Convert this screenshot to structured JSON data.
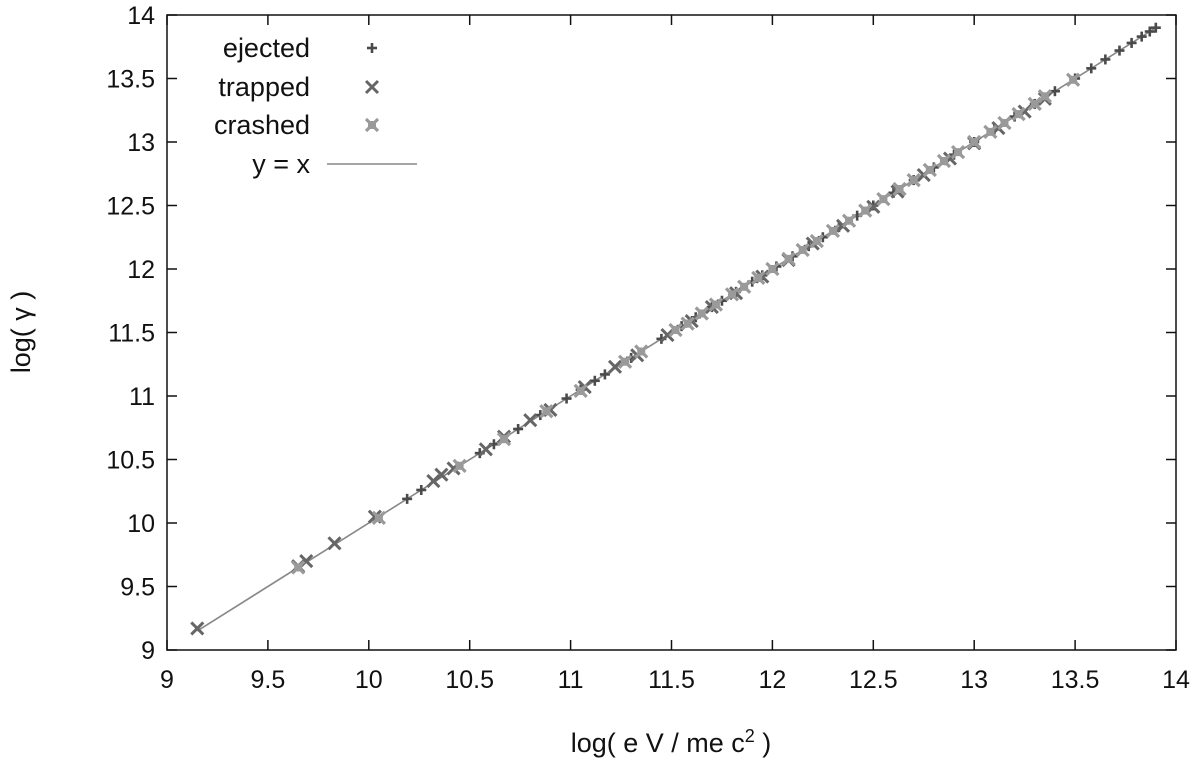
{
  "chart_data": {
    "type": "scatter",
    "title": "",
    "xlabel": "log( e V / me c",
    "xlabel_sup": "2",
    "xlabel_end": " )",
    "ylabel": "log( γ )",
    "xlim": [
      9,
      14
    ],
    "ylim": [
      9,
      14
    ],
    "x_ticks": [
      "9",
      "9.5",
      "10",
      "10.5",
      "11",
      "11.5",
      "12",
      "12.5",
      "13",
      "13.5",
      "14"
    ],
    "y_ticks": [
      "9",
      "9.5",
      "10",
      "10.5",
      "11",
      "11.5",
      "12",
      "12.5",
      "13",
      "13.5",
      "14"
    ],
    "grid": false,
    "legend_position": "top-left",
    "series": [
      {
        "name": "ejected",
        "marker": "plus",
        "color": "#4a4a4a",
        "points": [
          [
            10.19,
            10.19
          ],
          [
            10.26,
            10.26
          ],
          [
            10.55,
            10.55
          ],
          [
            10.62,
            10.62
          ],
          [
            10.74,
            10.74
          ],
          [
            10.85,
            10.85
          ],
          [
            10.98,
            10.98
          ],
          [
            11.05,
            11.05
          ],
          [
            11.12,
            11.12
          ],
          [
            11.17,
            11.17
          ],
          [
            11.3,
            11.3
          ],
          [
            11.45,
            11.45
          ],
          [
            11.55,
            11.55
          ],
          [
            11.62,
            11.62
          ],
          [
            11.7,
            11.7
          ],
          [
            11.75,
            11.75
          ],
          [
            11.82,
            11.82
          ],
          [
            11.9,
            11.9
          ],
          [
            11.95,
            11.95
          ],
          [
            12.02,
            12.02
          ],
          [
            12.1,
            12.1
          ],
          [
            12.18,
            12.18
          ],
          [
            12.25,
            12.25
          ],
          [
            12.33,
            12.33
          ],
          [
            12.42,
            12.42
          ],
          [
            12.5,
            12.5
          ],
          [
            12.6,
            12.6
          ],
          [
            12.7,
            12.7
          ],
          [
            12.8,
            12.8
          ],
          [
            12.9,
            12.9
          ],
          [
            13.0,
            13.0
          ],
          [
            13.1,
            13.1
          ],
          [
            13.2,
            13.2
          ],
          [
            13.3,
            13.3
          ],
          [
            13.4,
            13.4
          ],
          [
            13.5,
            13.5
          ],
          [
            13.58,
            13.58
          ],
          [
            13.65,
            13.65
          ],
          [
            13.72,
            13.72
          ],
          [
            13.78,
            13.78
          ],
          [
            13.83,
            13.83
          ],
          [
            13.87,
            13.87
          ],
          [
            13.9,
            13.9
          ]
        ]
      },
      {
        "name": "trapped",
        "marker": "cross",
        "color": "#666666",
        "points": [
          [
            9.15,
            9.17
          ],
          [
            9.65,
            9.66
          ],
          [
            9.69,
            9.7
          ],
          [
            9.83,
            9.84
          ],
          [
            10.03,
            10.05
          ],
          [
            10.32,
            10.33
          ],
          [
            10.36,
            10.38
          ],
          [
            10.42,
            10.43
          ],
          [
            10.58,
            10.58
          ],
          [
            10.67,
            10.68
          ],
          [
            10.8,
            10.81
          ],
          [
            10.9,
            10.89
          ],
          [
            11.07,
            11.07
          ],
          [
            11.22,
            11.23
          ],
          [
            11.33,
            11.32
          ],
          [
            11.48,
            11.48
          ],
          [
            11.6,
            11.59
          ],
          [
            11.7,
            11.7
          ],
          [
            11.82,
            11.81
          ],
          [
            11.95,
            11.94
          ],
          [
            12.08,
            12.07
          ],
          [
            12.2,
            12.2
          ],
          [
            12.35,
            12.34
          ],
          [
            12.5,
            12.49
          ],
          [
            12.62,
            12.61
          ],
          [
            12.75,
            12.74
          ],
          [
            12.88,
            12.87
          ],
          [
            13.0,
            12.99
          ],
          [
            13.12,
            13.11
          ],
          [
            13.25,
            13.24
          ],
          [
            13.35,
            13.34
          ]
        ]
      },
      {
        "name": "crashed",
        "marker": "filled-x",
        "color": "#9a9a9a",
        "points": [
          [
            9.65,
            9.65
          ],
          [
            10.05,
            10.04
          ],
          [
            10.45,
            10.45
          ],
          [
            10.67,
            10.66
          ],
          [
            10.88,
            10.88
          ],
          [
            11.05,
            11.04
          ],
          [
            11.27,
            11.27
          ],
          [
            11.35,
            11.35
          ],
          [
            11.52,
            11.52
          ],
          [
            11.58,
            11.57
          ],
          [
            11.65,
            11.65
          ],
          [
            11.72,
            11.72
          ],
          [
            11.8,
            11.8
          ],
          [
            11.86,
            11.86
          ],
          [
            11.93,
            11.93
          ],
          [
            12.0,
            12.0
          ],
          [
            12.08,
            12.08
          ],
          [
            12.15,
            12.15
          ],
          [
            12.22,
            12.22
          ],
          [
            12.3,
            12.3
          ],
          [
            12.38,
            12.38
          ],
          [
            12.46,
            12.46
          ],
          [
            12.55,
            12.55
          ],
          [
            12.63,
            12.63
          ],
          [
            12.7,
            12.7
          ],
          [
            12.78,
            12.78
          ],
          [
            12.85,
            12.85
          ],
          [
            12.92,
            12.92
          ],
          [
            13.0,
            13.0
          ],
          [
            13.08,
            13.08
          ],
          [
            13.15,
            13.15
          ],
          [
            13.22,
            13.22
          ],
          [
            13.3,
            13.3
          ],
          [
            13.35,
            13.36
          ],
          [
            13.49,
            13.49
          ]
        ]
      },
      {
        "name": "y = x",
        "type": "line",
        "color": "#888888",
        "points": [
          [
            9.15,
            9.15
          ],
          [
            13.9,
            13.9
          ]
        ]
      }
    ]
  }
}
